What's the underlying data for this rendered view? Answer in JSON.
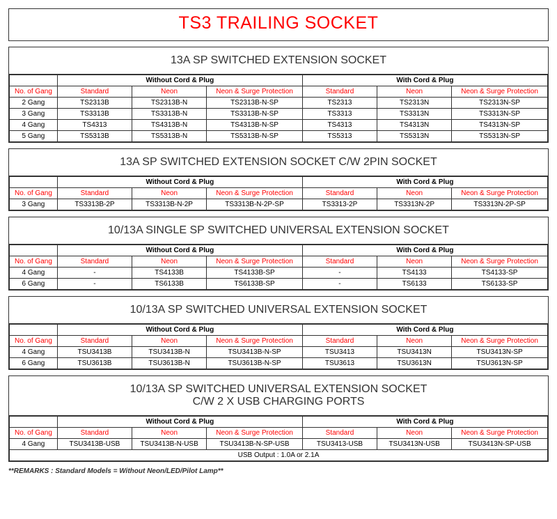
{
  "main_title": "TS3 TRAILING SOCKET",
  "group_headers": {
    "without": "Without Cord & Plug",
    "with": "With Cord & Plug"
  },
  "col_headers": {
    "gang": "No. of Gang",
    "std": "Standard",
    "neon": "Neon",
    "nsp": "Neon & Surge Protection"
  },
  "remarks": "**REMARKS : Standard Models = Without Neon/LED/Pilot Lamp**",
  "sections": [
    {
      "title": "13A SP SWITCHED EXTENSION SOCKET",
      "rows": [
        {
          "gang": "2 Gang",
          "wo_std": "TS2313B",
          "wo_neon": "TS2313B-N",
          "wo_nsp": "TS2313B-N-SP",
          "w_std": "TS2313",
          "w_neon": "TS2313N",
          "w_nsp": "TS2313N-SP"
        },
        {
          "gang": "3 Gang",
          "wo_std": "TS3313B",
          "wo_neon": "TS3313B-N",
          "wo_nsp": "TS3313B-N-SP",
          "w_std": "TS3313",
          "w_neon": "TS3313N",
          "w_nsp": "TS3313N-SP"
        },
        {
          "gang": "4 Gang",
          "wo_std": "TS4313",
          "wo_neon": "TS4313B-N",
          "wo_nsp": "TS4313B-N-SP",
          "w_std": "TS4313",
          "w_neon": "TS4313N",
          "w_nsp": "TS4313N-SP"
        },
        {
          "gang": "5 Gang",
          "wo_std": "TS5313B",
          "wo_neon": "TS5313B-N",
          "wo_nsp": "TS5313B-N-SP",
          "w_std": "TS5313",
          "w_neon": "TS5313N",
          "w_nsp": "TS5313N-SP"
        }
      ]
    },
    {
      "title": "13A SP SWITCHED EXTENSION SOCKET C/W 2PIN SOCKET",
      "rows": [
        {
          "gang": "3 Gang",
          "wo_std": "TS3313B-2P",
          "wo_neon": "TS3313B-N-2P",
          "wo_nsp": "TS3313B-N-2P-SP",
          "w_std": "TS3313-2P",
          "w_neon": "TS3313N-2P",
          "w_nsp": "TS3313N-2P-SP"
        }
      ]
    },
    {
      "title": "10/13A SINGLE SP SWITCHED UNIVERSAL EXTENSION SOCKET",
      "rows": [
        {
          "gang": "4 Gang",
          "wo_std": "-",
          "wo_neon": "TS4133B",
          "wo_nsp": "TS4133B-SP",
          "w_std": "-",
          "w_neon": "TS4133",
          "w_nsp": "TS4133-SP"
        },
        {
          "gang": "6 Gang",
          "wo_std": "-",
          "wo_neon": "TS6133B",
          "wo_nsp": "TS6133B-SP",
          "w_std": "-",
          "w_neon": "TS6133",
          "w_nsp": "TS6133-SP"
        }
      ]
    },
    {
      "title": "10/13A SP SWITCHED UNIVERSAL EXTENSION SOCKET",
      "rows": [
        {
          "gang": "4 Gang",
          "wo_std": "TSU3413B",
          "wo_neon": "TSU3413B-N",
          "wo_nsp": "TSU3413B-N-SP",
          "w_std": "TSU3413",
          "w_neon": "TSU3413N",
          "w_nsp": "TSU3413N-SP"
        },
        {
          "gang": "6 Gang",
          "wo_std": "TSU3613B",
          "wo_neon": "TSU3613B-N",
          "wo_nsp": "TSU3613B-N-SP",
          "w_std": "TSU3613",
          "w_neon": "TSU3613N",
          "w_nsp": "TSU3613N-SP"
        }
      ]
    },
    {
      "title": "10/13A SP SWITCHED UNIVERSAL EXTENSION SOCKET",
      "title2": "C/W 2 X USB CHARGING PORTS",
      "rows": [
        {
          "gang": "4 Gang",
          "wo_std": "TSU3413B-USB",
          "wo_neon": "TSU3413B-N-USB",
          "wo_nsp": "TSU3413B-N-SP-USB",
          "w_std": "TSU3413-USB",
          "w_neon": "TSU3413N-USB",
          "w_nsp": "TSU3413N-SP-USB"
        }
      ],
      "footer": "USB Output : 1.0A or 2.1A"
    }
  ]
}
